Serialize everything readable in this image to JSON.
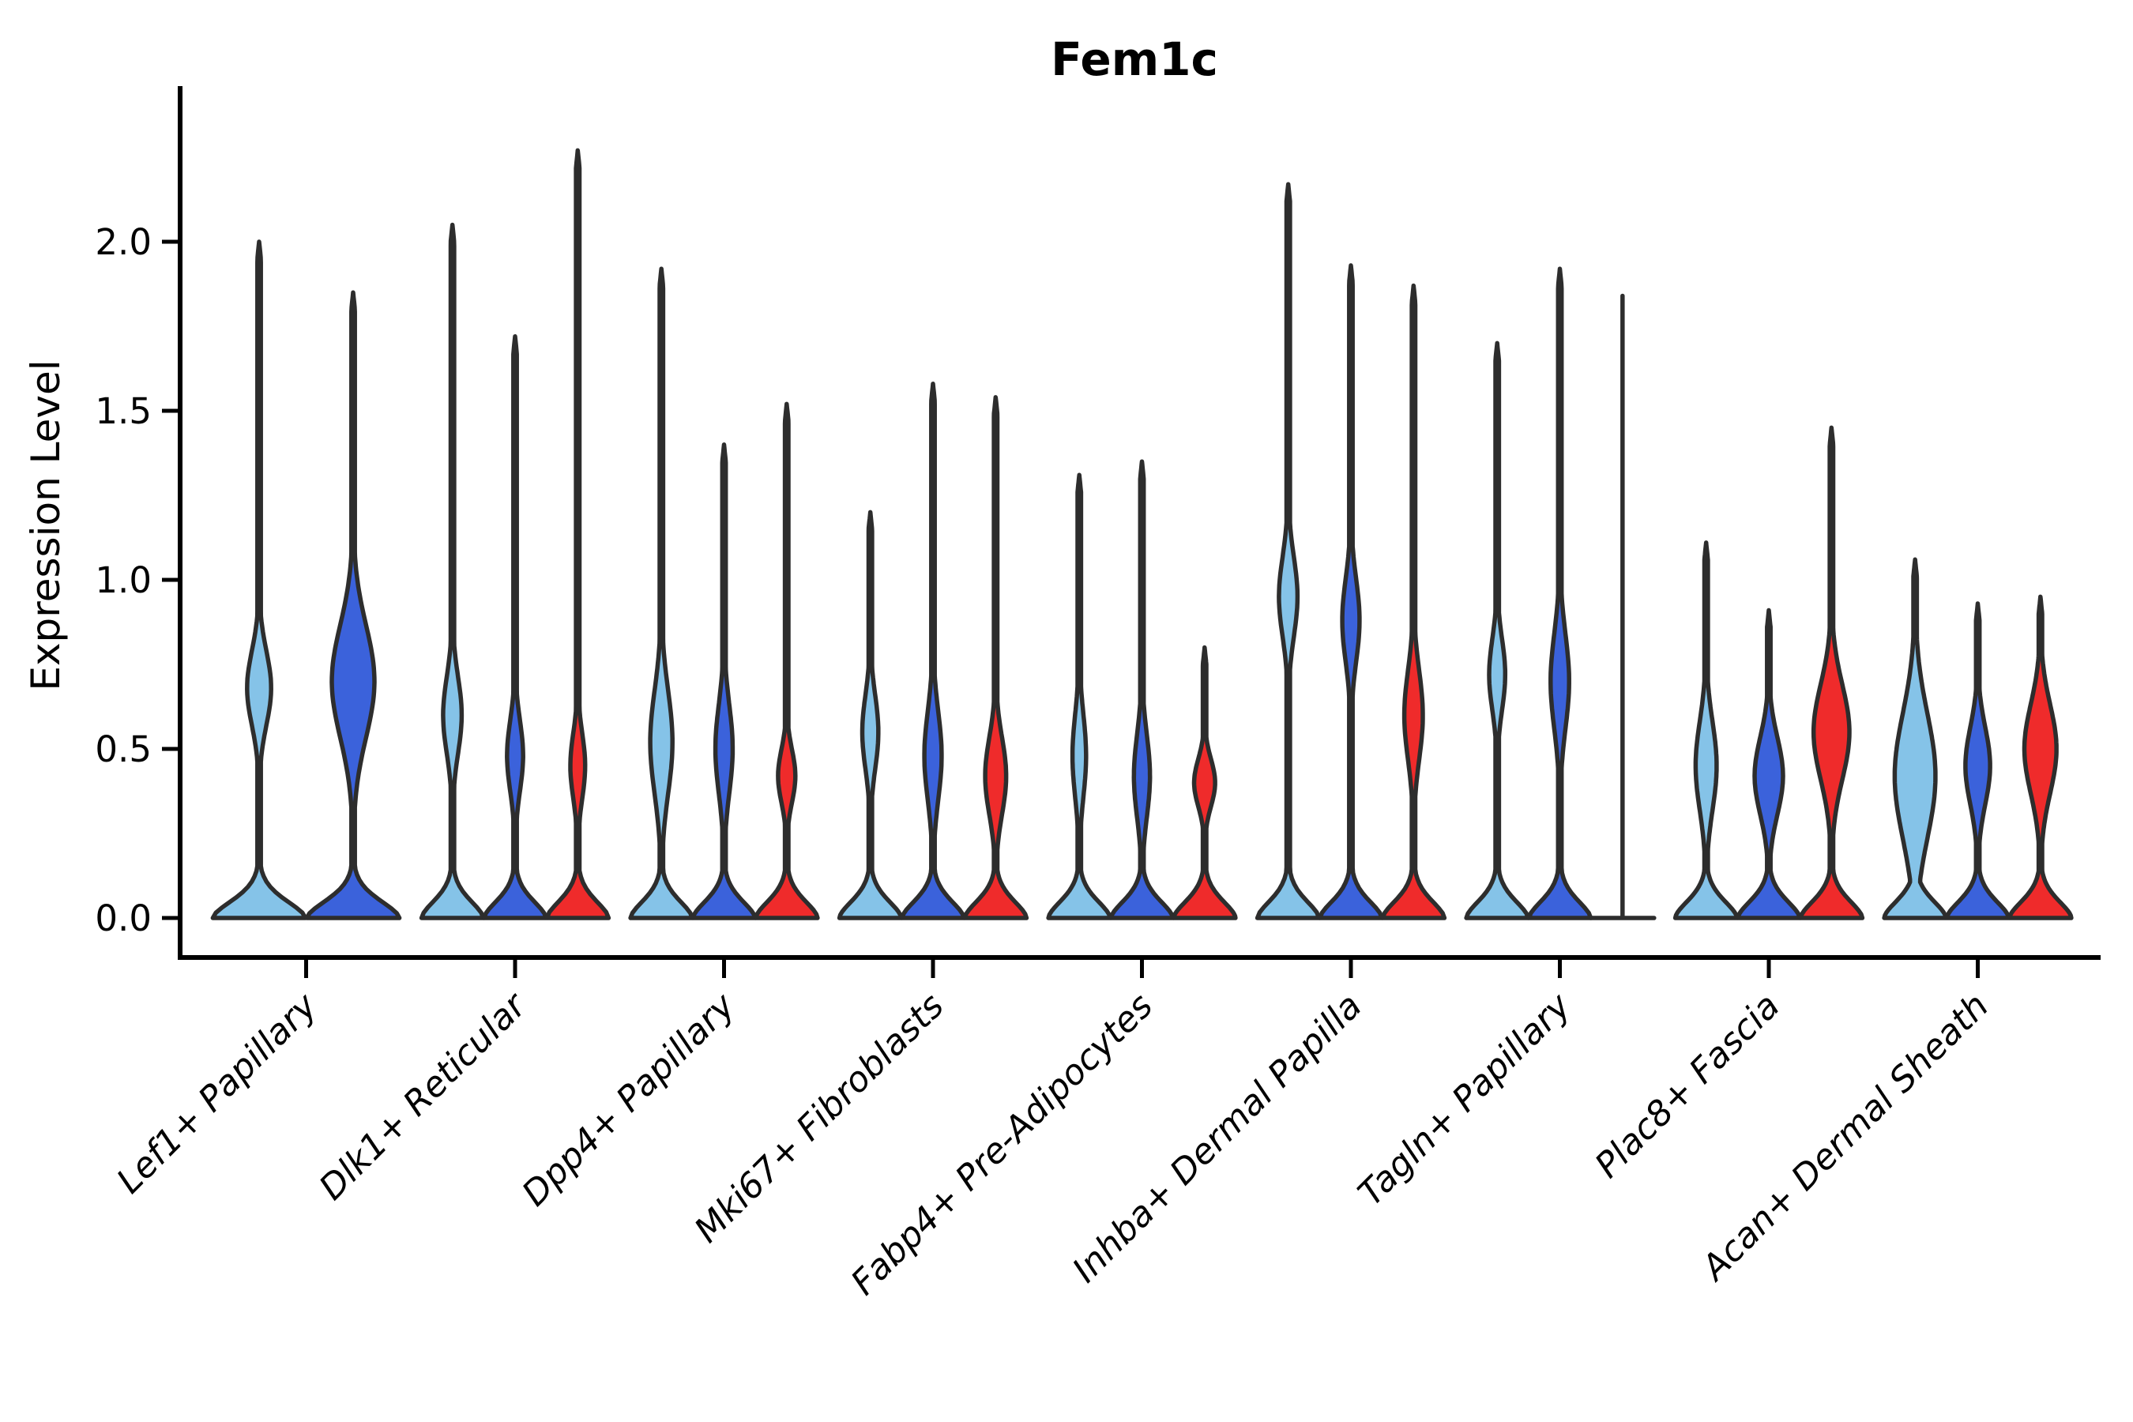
{
  "title": "Fem1c",
  "axes": {
    "ylabel": "Expression Level",
    "ytick_labels": [
      "0.0",
      "0.5",
      "1.0",
      "1.5",
      "2.0"
    ]
  },
  "colors": {
    "light_blue": "#85C3E8",
    "dark_blue": "#3B62DB",
    "red": "#EF2B2B",
    "violin_outline": "#2D2D2D",
    "axis": "#000000",
    "background": "#FFFFFF"
  },
  "chart_data": {
    "type": "violin",
    "title": "Fem1c",
    "xlabel": "",
    "ylabel": "Expression Level",
    "ylim": [
      0,
      2.44
    ],
    "yticks": [
      0.0,
      0.5,
      1.0,
      1.5,
      2.0
    ],
    "grid": false,
    "legend": "none",
    "categories": [
      "Lef1+ Papillary",
      "Dlk1+ Reticular",
      "Dpp4+ Papillary",
      "Mki67+ Fibroblasts",
      "Fabp4+ Pre-Adipocytes",
      "Inhba+ Dermal Papilla",
      "Tagln+ Papillary",
      "Plac8+ Fascia",
      "Acan+ Dermal Sheath"
    ],
    "splits": [
      {
        "key": "light_blue",
        "color": "#85C3E8"
      },
      {
        "key": "dark_blue",
        "color": "#3B62DB"
      },
      {
        "key": "red",
        "color": "#EF2B2B"
      }
    ],
    "series": [
      {
        "category": "Lef1+ Papillary",
        "slug": "lef1-papillary",
        "violins": [
          {
            "split": "light_blue",
            "max_expression": 2.0,
            "bulge_center": 0.68,
            "bulge_half_span": 0.25,
            "bulge_width_frac": 0.26,
            "degenerate": false
          },
          {
            "split": "dark_blue",
            "max_expression": 1.85,
            "bulge_center": 0.7,
            "bulge_half_span": 0.38,
            "bulge_width_frac": 0.46,
            "degenerate": false
          }
        ]
      },
      {
        "category": "Dlk1+ Reticular",
        "slug": "dlk1-reticular",
        "violins": [
          {
            "split": "light_blue",
            "max_expression": 2.05,
            "bulge_center": 0.6,
            "bulge_half_span": 0.26,
            "bulge_width_frac": 0.3,
            "degenerate": false
          },
          {
            "split": "dark_blue",
            "max_expression": 1.72,
            "bulge_center": 0.48,
            "bulge_half_span": 0.24,
            "bulge_width_frac": 0.26,
            "degenerate": false
          },
          {
            "split": "red",
            "max_expression": 2.27,
            "bulge_center": 0.45,
            "bulge_half_span": 0.22,
            "bulge_width_frac": 0.24,
            "degenerate": false
          }
        ]
      },
      {
        "category": "Dpp4+ Papillary",
        "slug": "dpp4-papillary",
        "violins": [
          {
            "split": "light_blue",
            "max_expression": 1.92,
            "bulge_center": 0.52,
            "bulge_half_span": 0.35,
            "bulge_width_frac": 0.36,
            "degenerate": false
          },
          {
            "split": "dark_blue",
            "max_expression": 1.4,
            "bulge_center": 0.5,
            "bulge_half_span": 0.3,
            "bulge_width_frac": 0.28,
            "degenerate": false
          },
          {
            "split": "red",
            "max_expression": 1.52,
            "bulge_center": 0.42,
            "bulge_half_span": 0.18,
            "bulge_width_frac": 0.28,
            "degenerate": false
          }
        ]
      },
      {
        "category": "Mki67+ Fibroblasts",
        "slug": "mki67-fibroblasts",
        "violins": [
          {
            "split": "light_blue",
            "max_expression": 1.2,
            "bulge_center": 0.55,
            "bulge_half_span": 0.25,
            "bulge_width_frac": 0.26,
            "degenerate": false
          },
          {
            "split": "dark_blue",
            "max_expression": 1.58,
            "bulge_center": 0.48,
            "bulge_half_span": 0.3,
            "bulge_width_frac": 0.28,
            "degenerate": false
          },
          {
            "split": "red",
            "max_expression": 1.54,
            "bulge_center": 0.42,
            "bulge_half_span": 0.26,
            "bulge_width_frac": 0.34,
            "degenerate": false
          }
        ]
      },
      {
        "category": "Fabp4+ Pre-Adipocytes",
        "slug": "fabp4-pre-adipocytes",
        "violins": [
          {
            "split": "light_blue",
            "max_expression": 1.31,
            "bulge_center": 0.48,
            "bulge_half_span": 0.28,
            "bulge_width_frac": 0.22,
            "degenerate": false
          },
          {
            "split": "dark_blue",
            "max_expression": 1.35,
            "bulge_center": 0.42,
            "bulge_half_span": 0.28,
            "bulge_width_frac": 0.26,
            "degenerate": false
          },
          {
            "split": "red",
            "max_expression": 0.8,
            "bulge_center": 0.4,
            "bulge_half_span": 0.16,
            "bulge_width_frac": 0.34,
            "degenerate": false
          }
        ]
      },
      {
        "category": "Inhba+ Dermal Papilla",
        "slug": "inhba-dermal-papilla",
        "violins": [
          {
            "split": "light_blue",
            "max_expression": 2.17,
            "bulge_center": 0.95,
            "bulge_half_span": 0.27,
            "bulge_width_frac": 0.3,
            "degenerate": false
          },
          {
            "split": "dark_blue",
            "max_expression": 1.93,
            "bulge_center": 0.88,
            "bulge_half_span": 0.28,
            "bulge_width_frac": 0.28,
            "degenerate": false
          },
          {
            "split": "red",
            "max_expression": 1.87,
            "bulge_center": 0.6,
            "bulge_half_span": 0.3,
            "bulge_width_frac": 0.3,
            "degenerate": false
          }
        ]
      },
      {
        "category": "Tagln+ Papillary",
        "slug": "tagln-papillary",
        "violins": [
          {
            "split": "light_blue",
            "max_expression": 1.7,
            "bulge_center": 0.72,
            "bulge_half_span": 0.24,
            "bulge_width_frac": 0.26,
            "degenerate": false
          },
          {
            "split": "dark_blue",
            "max_expression": 1.92,
            "bulge_center": 0.7,
            "bulge_half_span": 0.32,
            "bulge_width_frac": 0.3,
            "degenerate": false
          },
          {
            "split": "red",
            "max_expression": 1.84,
            "bulge_center": 0.0,
            "bulge_half_span": 0.0,
            "bulge_width_frac": 0.0,
            "degenerate": true
          }
        ]
      },
      {
        "category": "Plac8+ Fascia",
        "slug": "plac8-fascia",
        "violins": [
          {
            "split": "light_blue",
            "max_expression": 1.11,
            "bulge_center": 0.45,
            "bulge_half_span": 0.3,
            "bulge_width_frac": 0.34,
            "degenerate": false
          },
          {
            "split": "dark_blue",
            "max_expression": 0.91,
            "bulge_center": 0.42,
            "bulge_half_span": 0.26,
            "bulge_width_frac": 0.46,
            "degenerate": false
          },
          {
            "split": "red",
            "max_expression": 1.45,
            "bulge_center": 0.55,
            "bulge_half_span": 0.32,
            "bulge_width_frac": 0.58,
            "degenerate": false
          }
        ]
      },
      {
        "category": "Acan+ Dermal Sheath",
        "slug": "acan-dermal-sheath",
        "violins": [
          {
            "split": "light_blue",
            "max_expression": 1.06,
            "bulge_center": 0.42,
            "bulge_half_span": 0.42,
            "bulge_width_frac": 0.66,
            "degenerate": false
          },
          {
            "split": "dark_blue",
            "max_expression": 0.93,
            "bulge_center": 0.45,
            "bulge_half_span": 0.26,
            "bulge_width_frac": 0.4,
            "degenerate": false
          },
          {
            "split": "red",
            "max_expression": 0.95,
            "bulge_center": 0.5,
            "bulge_half_span": 0.3,
            "bulge_width_frac": 0.52,
            "degenerate": false
          }
        ]
      }
    ]
  }
}
